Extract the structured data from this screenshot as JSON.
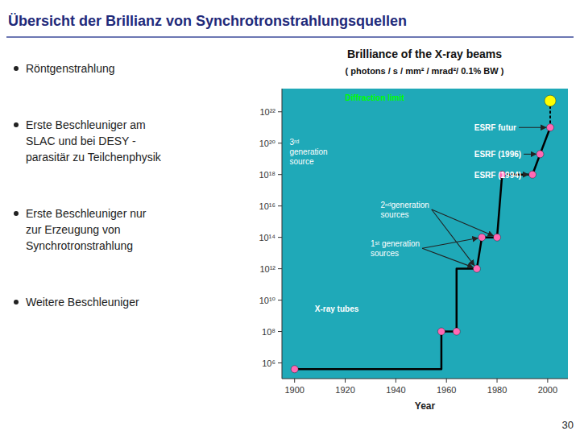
{
  "title": "Übersicht der Brillianz von Synchrotronstrahlungsquellen",
  "bullet_points": [
    "Röntgenstrahlung",
    "Erste Beschleuniger am\nSLAC und bei DESY -\nparasitär zu Teilchenphysik",
    "Erste Beschleuniger nur\nzur Erzeugung von\nSynchrotronstrahlung",
    "Weitere Beschleuniger"
  ],
  "page_number": "30",
  "chart_data": {
    "type": "line",
    "title": "Brilliance of the X-ray beams",
    "subtitle": "( photons / s / mm² / mrad²/ 0.1% BW )",
    "x_label": "Year",
    "log": "y",
    "grid": false,
    "xlim": [
      1895,
      2008
    ],
    "ylim": [
      100000.0,
      3e+23
    ],
    "xticks": [
      1900,
      1920,
      1940,
      1960,
      1980,
      2000
    ],
    "yticks": [
      {
        "value": 1000000.0,
        "label": "10⁶"
      },
      {
        "value": 100000000.0,
        "label": "10⁸"
      },
      {
        "value": 10000000000.0,
        "label": "10¹⁰"
      },
      {
        "value": 1000000000000.0,
        "label": "10¹²"
      },
      {
        "value": 100000000000000.0,
        "label": "10¹⁴"
      },
      {
        "value": 1e+16,
        "label": "10¹⁶"
      },
      {
        "value": 1e+18,
        "label": "10¹⁸"
      },
      {
        "value": 1e+20,
        "label": "10²⁰"
      },
      {
        "value": 1e+22,
        "label": "10²²"
      }
    ],
    "series": [
      {
        "type": "line",
        "line_style": "solid",
        "color": "#000000",
        "x": [
          1900,
          1958,
          1958,
          1964,
          1964,
          1972,
          1974,
          1980,
          1982,
          1994,
          1997,
          2001
        ],
        "values": [
          400000.0,
          400000.0,
          100000000.0,
          100000000.0,
          1000000000000.0,
          1000000000000.0,
          100000000000000.0,
          100000000000000.0,
          1e+18,
          1e+18,
          2e+19,
          1e+21
        ]
      },
      {
        "type": "line",
        "line_style": "dotted",
        "color": "#000000",
        "x": [
          2001,
          2001
        ],
        "values": [
          1e+21,
          5e+22
        ]
      },
      {
        "type": "scatter",
        "marker": "circle",
        "color": "#ff69b4",
        "x": [
          1900,
          1958,
          1964,
          1972,
          1974,
          1980,
          1982,
          1994,
          1997,
          2001
        ],
        "values": [
          400000.0,
          100000000.0,
          100000000.0,
          1000000000000.0,
          100000000000000.0,
          100000000000000.0,
          1e+18,
          1e+18,
          2e+19,
          1e+21
        ]
      },
      {
        "type": "scatter",
        "marker": "circle",
        "color": "#ffff00",
        "x": [
          2001
        ],
        "values": [
          5e+22
        ]
      }
    ],
    "annotations": [
      {
        "text": "Diffraction limit",
        "x": 1920,
        "y": 8e+22,
        "color": "#00ff00"
      },
      {
        "text": "3ʳᵈ\ngeneration\nsource",
        "x": 1898,
        "y": 3e+19,
        "color": "#ffffff"
      },
      {
        "text": "ESRF futur",
        "x": 1971,
        "y": 1e+21,
        "color": "#ffffff",
        "arrow_to": [
          {
            "x": 2001,
            "y": 1e+21
          }
        ]
      },
      {
        "text": "ESRF (1996)",
        "x": 1971,
        "y": 2e+19,
        "color": "#ffffff",
        "arrow_to": [
          {
            "x": 1997,
            "y": 2e+19
          }
        ]
      },
      {
        "text": "ESRF (1994)",
        "x": 1971,
        "y": 1e+18,
        "color": "#ffffff",
        "arrow_to": [
          {
            "x": 1994,
            "y": 1e+18
          }
        ]
      },
      {
        "text": "2ⁿᵈgeneration\nsources",
        "x": 1934,
        "y": 6000000000000000.0,
        "color": "#ffffff",
        "arrow_to": [
          {
            "x": 1972,
            "y": 1000000000000.0
          },
          {
            "x": 1980,
            "y": 100000000000000.0
          }
        ]
      },
      {
        "text": "1ˢᵗ generation\nsources",
        "x": 1930,
        "y": 20000000000000.0,
        "color": "#ffffff",
        "arrow_to": [
          {
            "x": 1974,
            "y": 100000000000000.0
          },
          {
            "x": 1972,
            "y": 1000000000000.0
          }
        ]
      },
      {
        "text": "X-ray tubes",
        "x": 1908,
        "y": 3000000000.0,
        "color": "#ffffff"
      }
    ]
  }
}
